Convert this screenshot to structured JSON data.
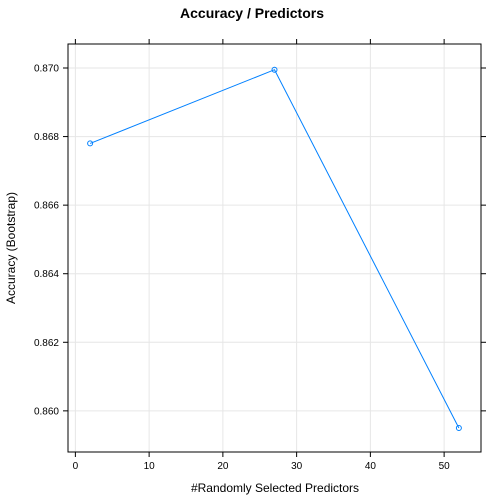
{
  "chart_data": {
    "type": "line",
    "title": "Accuracy / Predictors",
    "xlabel": "#Randomly Selected Predictors",
    "ylabel": "Accuracy (Bootstrap)",
    "x": [
      2,
      27,
      52
    ],
    "y": [
      0.8678,
      0.86995,
      0.8595
    ],
    "xlim": [
      -1,
      55
    ],
    "ylim": [
      0.8588,
      0.8707
    ],
    "xticks": [
      0,
      10,
      20,
      30,
      40,
      50
    ],
    "xtick_labels": [
      "0",
      "10",
      "20",
      "30",
      "40",
      "50"
    ],
    "yticks": [
      0.86,
      0.862,
      0.864,
      0.866,
      0.868,
      0.87
    ],
    "ytick_labels": [
      "0.860",
      "0.862",
      "0.864",
      "0.866",
      "0.868",
      "0.870"
    ],
    "grid": true,
    "colors": {
      "series": "#0080ff",
      "grid": "#e6e6e6"
    }
  }
}
